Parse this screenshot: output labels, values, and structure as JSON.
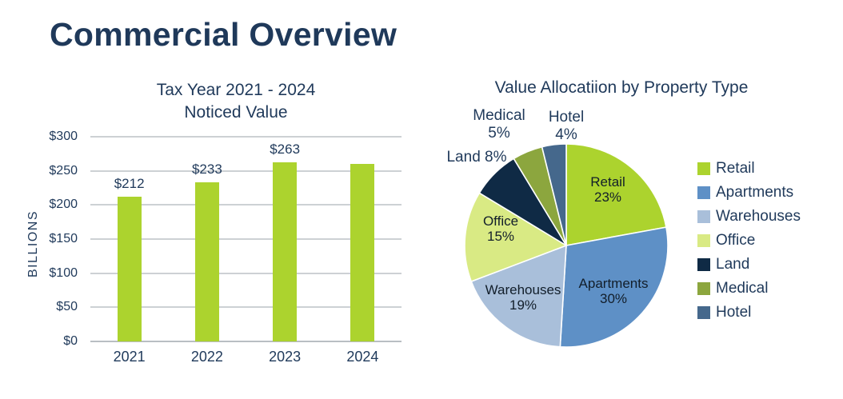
{
  "page": {
    "title": "Commercial Overview"
  },
  "colors": {
    "navy_text": "#1f395a",
    "accent_green": "#acd32e",
    "gridline": "#cdd1d4"
  },
  "chart_data": [
    {
      "type": "bar",
      "title_line1": "Tax Year 2021 - 2024",
      "title_line2": "Noticed Value",
      "ylabel": "BILLIONS",
      "categories": [
        "2021",
        "2022",
        "2023",
        "2024"
      ],
      "values": [
        212,
        233,
        263,
        260
      ],
      "bar_labels": [
        "$212",
        "$233",
        "$263",
        ""
      ],
      "ylim": [
        0,
        300
      ],
      "ytick_step": 50,
      "ytick_labels": [
        "$0",
        "$50",
        "$100",
        "$150",
        "$200",
        "$250",
        "$300"
      ],
      "grid": true,
      "bar_color": "#acd32e"
    },
    {
      "type": "pie",
      "title": "Value Allocatiion by Property Type",
      "start_angle_deg": 0,
      "legend_position": "right",
      "slices": [
        {
          "label": "Retail",
          "pct": 23,
          "color": "#acd32e"
        },
        {
          "label": "Apartments",
          "pct": 30,
          "color": "#5e90c6"
        },
        {
          "label": "Warehouses",
          "pct": 19,
          "color": "#a9bfda"
        },
        {
          "label": "Office",
          "pct": 15,
          "color": "#d9ea84"
        },
        {
          "label": "Land",
          "pct": 8,
          "color": "#0f2a45"
        },
        {
          "label": "Medical",
          "pct": 5,
          "color": "#8ca63e"
        },
        {
          "label": "Hotel",
          "pct": 4,
          "color": "#45688c"
        }
      ]
    }
  ]
}
